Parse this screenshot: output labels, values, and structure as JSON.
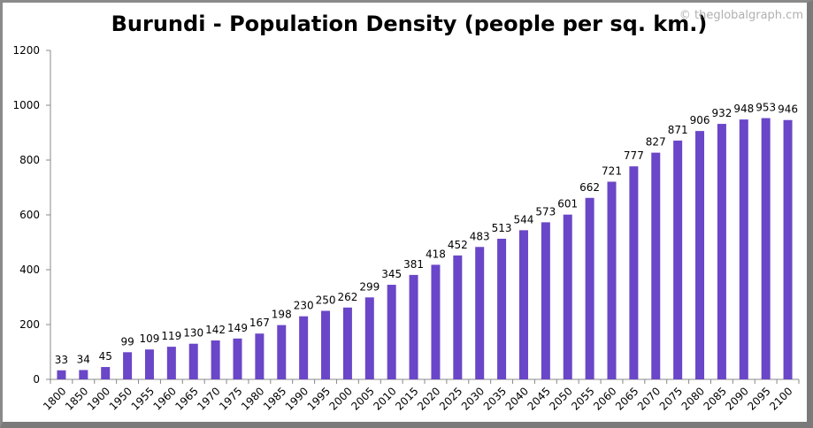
{
  "chart_data": {
    "type": "bar",
    "title": "Burundi - Population Density (people per sq. km.)",
    "watermark": "© theglobalgraph.cm",
    "xlabel": "",
    "ylabel": "",
    "ylim": [
      0,
      1200
    ],
    "yticks": [
      0,
      200,
      400,
      600,
      800,
      1000,
      1200
    ],
    "grid": false,
    "bar_color": "#6a46c8",
    "categories": [
      "1800",
      "1850",
      "1900",
      "1950",
      "1955",
      "1960",
      "1965",
      "1970",
      "1975",
      "1980",
      "1985",
      "1990",
      "1995",
      "2000",
      "2005",
      "2010",
      "2015",
      "2020",
      "2025",
      "2030",
      "2035",
      "2040",
      "2045",
      "2050",
      "2055",
      "2060",
      "2065",
      "2070",
      "2075",
      "2080",
      "2085",
      "2090",
      "2095",
      "2100"
    ],
    "values": [
      33,
      34,
      45,
      99,
      109,
      119,
      130,
      142,
      149,
      167,
      198,
      230,
      250,
      262,
      299,
      345,
      381,
      418,
      452,
      483,
      513,
      544,
      573,
      601,
      662,
      721,
      777,
      827,
      871,
      906,
      932,
      948,
      953,
      946
    ]
  }
}
